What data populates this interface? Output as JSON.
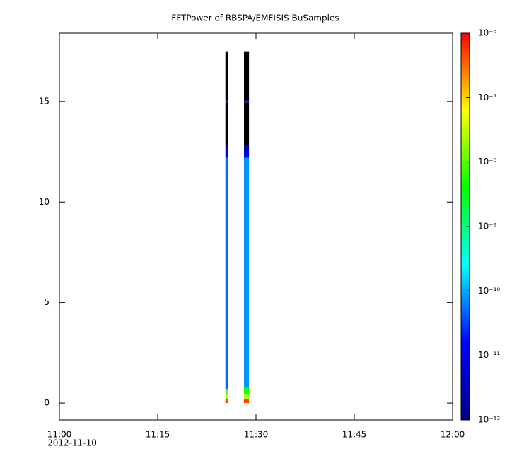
{
  "chart_data": {
    "type": "spectrogram",
    "title": "FFTPower of RBSPA/EMFISIS  BuSamples",
    "xlim": [
      "11:00:00",
      "12:00:00"
    ],
    "xticks": [
      {
        "value": "11:00:00",
        "label": "11:00"
      },
      {
        "value": "11:15:00",
        "label": "11:15"
      },
      {
        "value": "11:30:00",
        "label": "11:30"
      },
      {
        "value": "11:45:00",
        "label": "11:45"
      },
      {
        "value": "12:00:00",
        "label": "12:00"
      }
    ],
    "x_date": "2012-11-10",
    "ylim": [
      -0.84,
      18.4
    ],
    "yticks": [
      0,
      5,
      10,
      15
    ],
    "zlim": [
      1e-12,
      1e-06
    ],
    "zlog": true,
    "zticks": [
      {
        "value": 1e-06,
        "label": "10⁻⁶"
      },
      {
        "value": 1e-07,
        "label": "10⁻⁷"
      },
      {
        "value": 1e-08,
        "label": "10⁻⁸"
      },
      {
        "value": 1e-09,
        "label": "10⁻⁹"
      },
      {
        "value": 1e-10,
        "label": "10⁻¹⁰"
      },
      {
        "value": 1e-11,
        "label": "10⁻¹¹"
      },
      {
        "value": 1e-12,
        "label": "10⁻¹²"
      }
    ],
    "colormap": [
      "#00007f",
      "#0000ff",
      "#00ffff",
      "#00ff00",
      "#ffff00",
      "#ff0000"
    ],
    "below_color": "#000000",
    "columns": [
      {
        "x": [
          "11:25:20",
          "11:25:42"
        ],
        "cells": [
          {
            "y": [
              0,
              0.2
            ],
            "value": 5e-07
          },
          {
            "y": [
              0.2,
              0.45
            ],
            "value": 3e-08
          },
          {
            "y": [
              0.45,
              0.7
            ],
            "value": 1e-08
          },
          {
            "y": [
              0.7,
              12.2
            ],
            "value": 5e-11
          },
          {
            "y": [
              12.2,
              12.5
            ],
            "value": 1e-11
          },
          {
            "y": [
              12.5,
              12.8
            ],
            "value": 3e-12
          },
          {
            "y": [
              12.8,
              14.95
            ],
            "value": 1e-13
          },
          {
            "y": [
              14.95,
              15.05
            ],
            "value": 1e-11
          },
          {
            "y": [
              15.05,
              17.5
            ],
            "value": 1e-13
          }
        ]
      },
      {
        "x": [
          "11:28:10",
          "11:28:56"
        ],
        "cells": [
          {
            "y": [
              0,
              0.2
            ],
            "value": 5e-07
          },
          {
            "y": [
              0.2,
              0.45
            ],
            "value": 3e-08
          },
          {
            "y": [
              0.45,
              0.75
            ],
            "value": 5e-09
          },
          {
            "y": [
              0.75,
              12.2
            ],
            "value": 8e-11
          },
          {
            "y": [
              12.2,
              12.5
            ],
            "value": 1e-11
          },
          {
            "y": [
              12.5,
              12.85
            ],
            "value": 3e-12
          },
          {
            "y": [
              12.85,
              14.95
            ],
            "value": 1e-13
          },
          {
            "y": [
              14.95,
              15.05
            ],
            "value": 1e-11
          },
          {
            "y": [
              15.05,
              17.5
            ],
            "value": 1e-13
          }
        ]
      }
    ]
  }
}
